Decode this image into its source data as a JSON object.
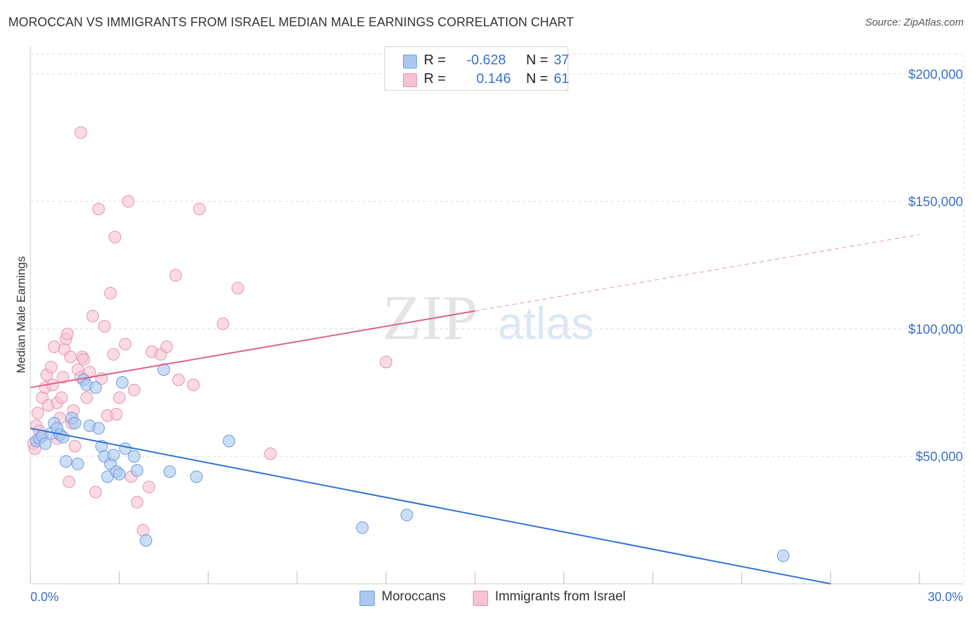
{
  "title": "MOROCCAN VS IMMIGRANTS FROM ISRAEL MEDIAN MALE EARNINGS CORRELATION CHART",
  "source": "Source: ZipAtlas.com",
  "watermark": {
    "part1": "ZIP",
    "part2": "atlas"
  },
  "legend": {
    "r_label": "R =",
    "n_label": "N =",
    "rows": [
      {
        "r": "-0.628",
        "n": "37",
        "fill": "#aac8f0",
        "stroke": "#6a9be0"
      },
      {
        "r": "0.146",
        "n": "61",
        "fill": "#f7c3d2",
        "stroke": "#e890ad"
      }
    ]
  },
  "bottom_legend": [
    "Moroccans",
    "Immigrants from Israel"
  ],
  "chart_data": {
    "type": "scatter",
    "ylabel": "Median Male Earnings",
    "xlim": [
      0,
      30
    ],
    "ylim": [
      0,
      210000
    ],
    "x_tick_labels": [
      "0.0%",
      "30.0%"
    ],
    "y_ticks": [
      {
        "value": 50000,
        "label": "$50,000"
      },
      {
        "value": 100000,
        "label": "$100,000"
      },
      {
        "value": 150000,
        "label": "$150,000"
      },
      {
        "value": 200000,
        "label": "$200,000"
      }
    ],
    "grid": true,
    "colors": {
      "moroccans_fill": "#aac8f0",
      "moroccans_stroke": "#6a9be0",
      "moroccans_line": "#2f72d6",
      "israel_fill": "#f7c3d2",
      "israel_stroke": "#e890ad",
      "israel_line": "#e0608a",
      "tick_label": "#3a72c4"
    },
    "series": [
      {
        "name": "Moroccans",
        "points": [
          [
            0.2,
            56000
          ],
          [
            0.3,
            57000
          ],
          [
            0.4,
            58000
          ],
          [
            0.5,
            55000
          ],
          [
            0.7,
            59000
          ],
          [
            0.8,
            63000
          ],
          [
            0.9,
            61000
          ],
          [
            1.0,
            58500
          ],
          [
            1.1,
            57500
          ],
          [
            1.2,
            48000
          ],
          [
            1.4,
            65000
          ],
          [
            1.5,
            63000
          ],
          [
            1.6,
            47000
          ],
          [
            1.8,
            80000
          ],
          [
            1.9,
            78000
          ],
          [
            2.0,
            62000
          ],
          [
            2.2,
            77000
          ],
          [
            2.3,
            61000
          ],
          [
            2.4,
            54000
          ],
          [
            2.5,
            50000
          ],
          [
            2.6,
            42000
          ],
          [
            2.7,
            47000
          ],
          [
            2.8,
            50500
          ],
          [
            2.9,
            44000
          ],
          [
            3.0,
            43000
          ],
          [
            3.1,
            79000
          ],
          [
            3.2,
            53000
          ],
          [
            3.5,
            50000
          ],
          [
            3.6,
            44500
          ],
          [
            3.9,
            17000
          ],
          [
            4.5,
            84000
          ],
          [
            4.7,
            44000
          ],
          [
            5.6,
            42000
          ],
          [
            6.7,
            56000
          ],
          [
            11.2,
            22000
          ],
          [
            12.7,
            27000
          ],
          [
            25.4,
            11000
          ]
        ],
        "trend": {
          "x0": 0,
          "y0": 61000,
          "x1": 27,
          "y1": 0
        }
      },
      {
        "name": "Immigrants from Israel",
        "points": [
          [
            0.1,
            55000
          ],
          [
            0.15,
            53000
          ],
          [
            0.2,
            62000
          ],
          [
            0.25,
            67000
          ],
          [
            0.3,
            60000
          ],
          [
            0.4,
            73000
          ],
          [
            0.5,
            77000
          ],
          [
            0.55,
            82000
          ],
          [
            0.6,
            70000
          ],
          [
            0.7,
            85000
          ],
          [
            0.75,
            78000
          ],
          [
            0.8,
            93000
          ],
          [
            0.9,
            71000
          ],
          [
            1.0,
            65000
          ],
          [
            1.05,
            73000
          ],
          [
            1.1,
            81000
          ],
          [
            1.15,
            92000
          ],
          [
            1.2,
            96000
          ],
          [
            1.25,
            98000
          ],
          [
            1.3,
            40000
          ],
          [
            1.35,
            89000
          ],
          [
            1.4,
            63000
          ],
          [
            1.45,
            68000
          ],
          [
            1.5,
            54000
          ],
          [
            1.6,
            84000
          ],
          [
            1.7,
            81000
          ],
          [
            1.75,
            89000
          ],
          [
            1.8,
            88000
          ],
          [
            1.9,
            73000
          ],
          [
            2.0,
            83000
          ],
          [
            2.1,
            105000
          ],
          [
            2.2,
            36000
          ],
          [
            2.3,
            147000
          ],
          [
            2.4,
            80500
          ],
          [
            2.5,
            101000
          ],
          [
            2.6,
            66000
          ],
          [
            2.7,
            114000
          ],
          [
            2.8,
            90000
          ],
          [
            2.85,
            136000
          ],
          [
            2.9,
            66500
          ],
          [
            3.0,
            73000
          ],
          [
            3.2,
            94000
          ],
          [
            3.3,
            150000
          ],
          [
            3.4,
            42000
          ],
          [
            3.5,
            76000
          ],
          [
            3.6,
            32000
          ],
          [
            3.8,
            21000
          ],
          [
            4.0,
            38000
          ],
          [
            4.1,
            91000
          ],
          [
            4.4,
            90000
          ],
          [
            4.6,
            93000
          ],
          [
            4.9,
            121000
          ],
          [
            5.0,
            80000
          ],
          [
            5.5,
            78000
          ],
          [
            5.7,
            147000
          ],
          [
            6.5,
            102000
          ],
          [
            7.0,
            116000
          ],
          [
            8.1,
            51000
          ],
          [
            12.0,
            87000
          ],
          [
            1.7,
            177000
          ],
          [
            0.9,
            57000
          ]
        ],
        "trend": {
          "x0": 0,
          "y0": 77000,
          "x1": 15,
          "y1": 107000
        },
        "trend_dashed": {
          "x0": 15,
          "y0": 107000,
          "x1": 30,
          "y1": 137000
        }
      }
    ]
  }
}
